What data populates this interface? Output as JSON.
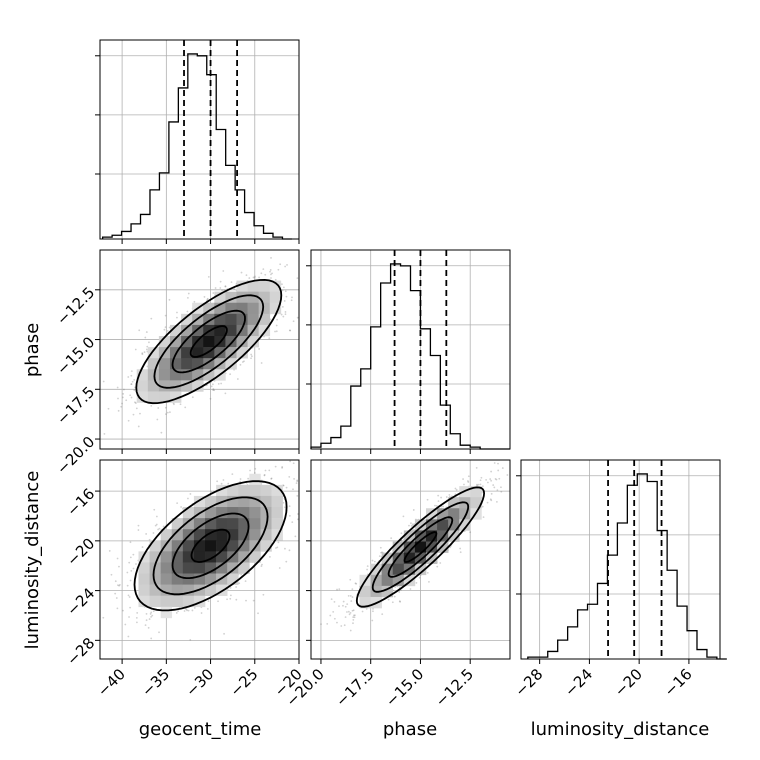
{
  "chart_data": {
    "type": "corner",
    "parameters": [
      "geocent_time",
      "phase",
      "luminosity_distance"
    ],
    "ranges": {
      "geocent_time": [
        -42.5,
        -20
      ],
      "phase": [
        -20.5,
        -10.5
      ],
      "luminosity_distance": [
        -29.5,
        -13.5
      ]
    },
    "ticks": {
      "geocent_time": [
        "-40",
        "-35",
        "-30",
        "-25",
        "-20"
      ],
      "phase": [
        "-20.0",
        "-17.5",
        "-15.0",
        "-12.5"
      ],
      "luminosity_distance": [
        "-28",
        "-24",
        "-20",
        "-16"
      ]
    },
    "quantiles": {
      "geocent_time": [
        -33,
        -30,
        -27
      ],
      "phase": [
        -16.3,
        -15.0,
        -13.7
      ],
      "luminosity_distance": [
        -22.5,
        -20.4,
        -18.2
      ]
    },
    "histograms": {
      "geocent_time": {
        "bin_start": -42.2,
        "bin_width": 1.07,
        "counts": [
          1,
          2,
          4,
          8,
          13,
          26,
          35,
          62,
          80,
          98,
          97,
          87,
          58,
          39,
          26,
          14,
          7,
          3,
          1,
          0
        ]
      },
      "phase": {
        "bin_start": -20.5,
        "bin_width": 0.5,
        "counts": [
          1,
          3,
          6,
          12,
          33,
          42,
          64,
          87,
          97,
          96,
          83,
          63,
          49,
          23,
          8,
          2,
          1,
          0,
          0,
          0
        ]
      },
      "luminosity_distance": {
        "bin_start": -28.95,
        "bin_width": 0.8,
        "counts": [
          1,
          1,
          4,
          10,
          17,
          26,
          29,
          40,
          55,
          72,
          92,
          98,
          94,
          68,
          47,
          28,
          15,
          5,
          1,
          0
        ]
      }
    },
    "pairs": [
      {
        "x": "geocent_time",
        "y": "phase",
        "mean": [
          -30.2,
          -15.1
        ],
        "sd": [
          4.1,
          1.55
        ],
        "corr": 0.75
      },
      {
        "x": "geocent_time",
        "y": "luminosity_distance",
        "mean": [
          -30.0,
          -20.4
        ],
        "sd": [
          4.3,
          2.6
        ],
        "corr": 0.6
      },
      {
        "x": "phase",
        "y": "luminosity_distance",
        "mean": [
          -15.0,
          -20.5
        ],
        "sd": [
          1.6,
          2.4
        ],
        "corr": 0.9
      }
    ],
    "grid": true
  }
}
